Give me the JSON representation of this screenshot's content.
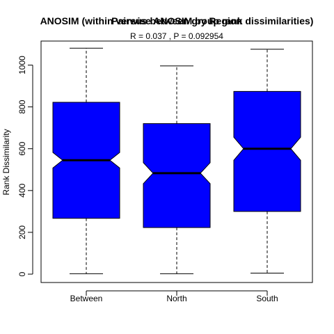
{
  "chart_data": {
    "type": "boxplot",
    "titles": [
      "ANOSIM (within versus between group rank dissimilarities)",
      "Pairwise ANOSIM by Region"
    ],
    "subtitle": "R =  0.037 ,  P =  0.092954",
    "ylabel": "Rank Dissimilarity",
    "xlabel": "",
    "ylim": [
      -40,
      1115
    ],
    "yticks": [
      0,
      200,
      400,
      600,
      800,
      1000
    ],
    "notched": true,
    "box_color": "#0000ff",
    "categories": [
      "Between",
      "North",
      "South"
    ],
    "boxes": [
      {
        "name": "Between",
        "whisker_low": 2,
        "q1": 267,
        "notch_low": 508,
        "median": 545,
        "notch_high": 582,
        "q3": 822,
        "whisker_high": 1081
      },
      {
        "name": "North",
        "whisker_low": 2,
        "q1": 223,
        "notch_low": 433,
        "median": 483,
        "notch_high": 533,
        "q3": 720,
        "whisker_high": 996
      },
      {
        "name": "South",
        "whisker_low": 5,
        "q1": 300,
        "notch_low": 545,
        "median": 600,
        "notch_high": 655,
        "q3": 874,
        "whisker_high": 1076
      }
    ]
  }
}
